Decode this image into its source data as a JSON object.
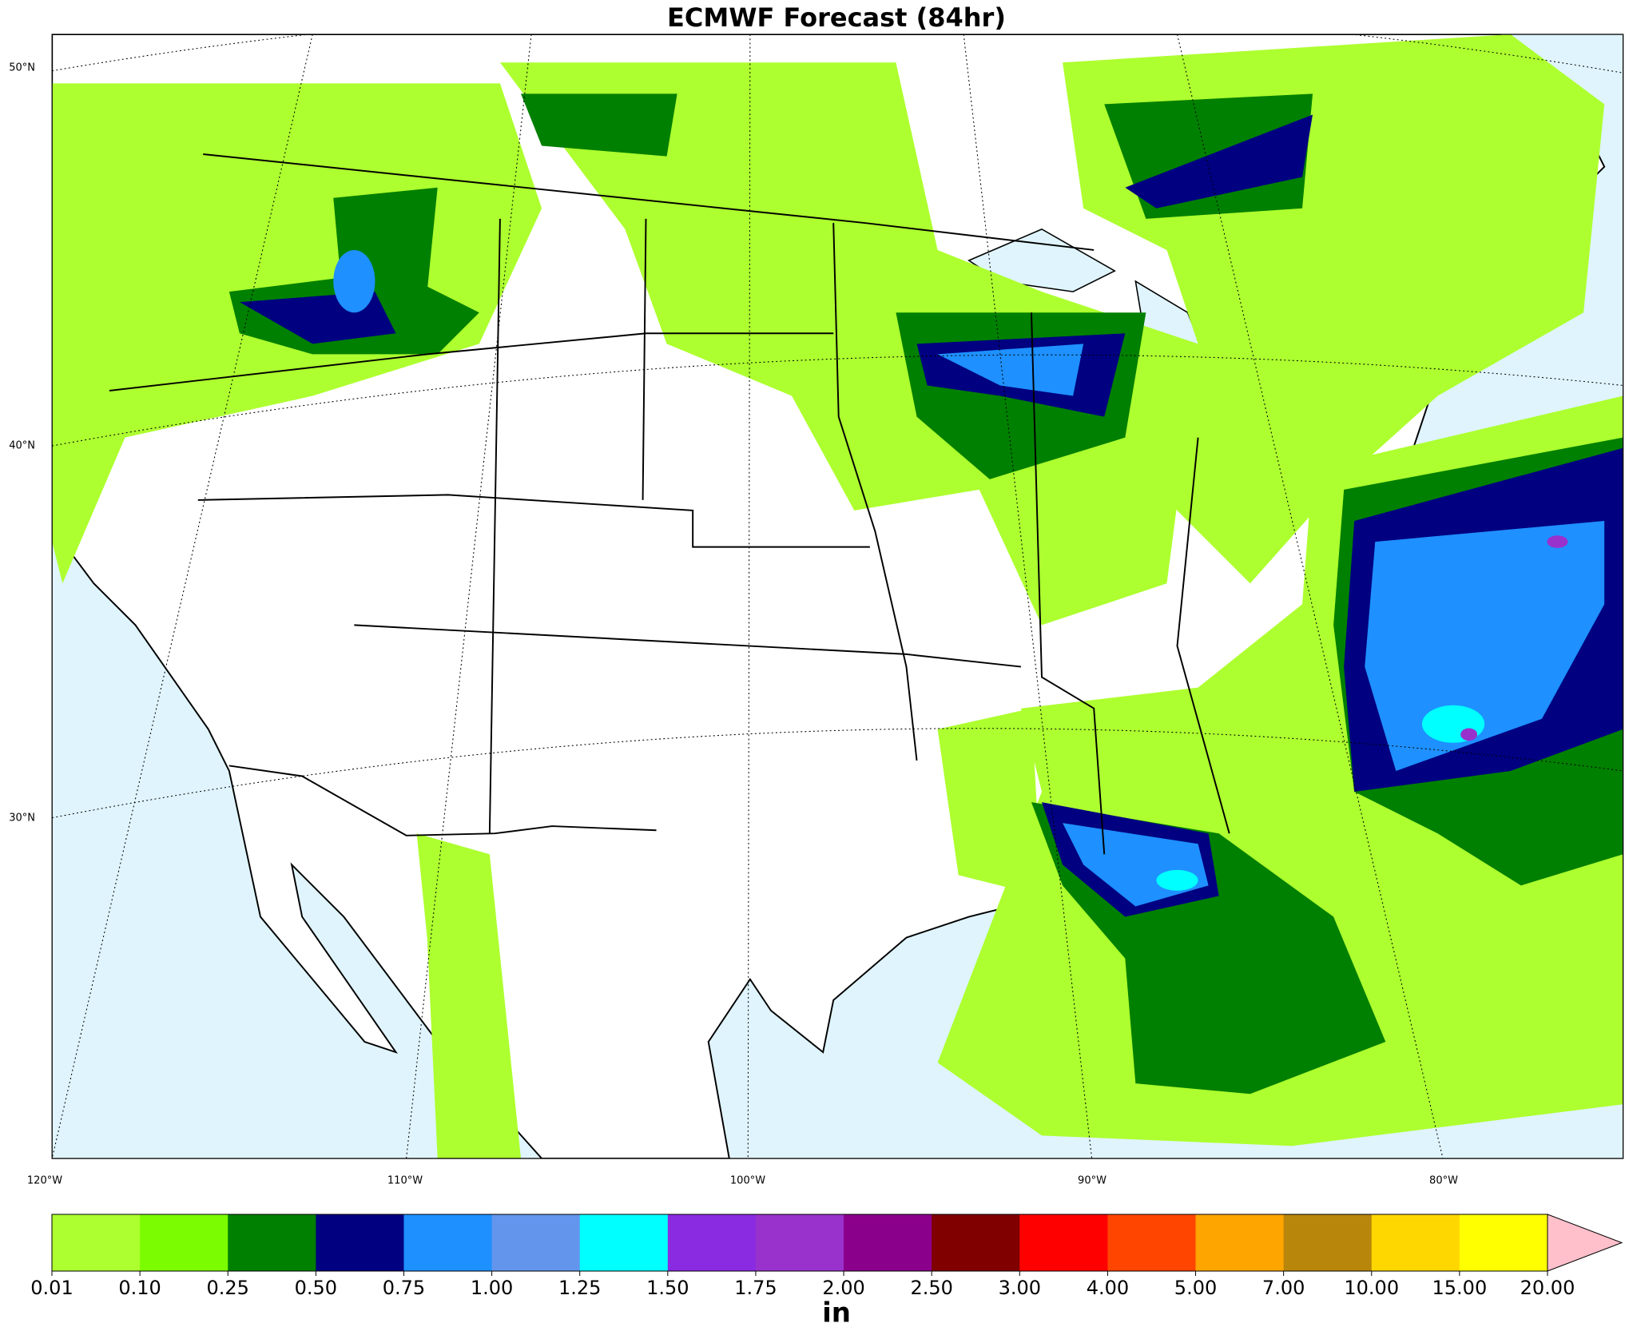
{
  "title": "ECMWF Forecast (84hr)",
  "map": {
    "lat_labels": [
      "50°N",
      "40°N",
      "30°N"
    ],
    "lon_labels": [
      "120°W",
      "110°W",
      "100°W",
      "90°W",
      "80°W"
    ]
  },
  "colorbar": {
    "ticks": [
      0.01,
      {
        "value": 0.1,
        "label": "0.10"
      },
      0.25,
      {
        "value": 0.5,
        "label": "0.50"
      },
      0.75,
      {
        "value": 1,
        "label": "1.00"
      },
      1.25,
      {
        "value": 1.5,
        "label": "1.50"
      },
      1.75,
      {
        "value": 2,
        "label": "2.00"
      },
      {
        "value": 2.5,
        "label": "2.50"
      },
      {
        "value": 3,
        "label": "3.00"
      },
      {
        "value": 4,
        "label": "4.00"
      },
      {
        "value": 5,
        "label": "5.00"
      },
      {
        "value": 7,
        "label": "7.00"
      },
      {
        "value": 10,
        "label": "10.00"
      },
      {
        "value": 15,
        "label": "15.00"
      },
      {
        "value": 20,
        "label": "20.00"
      }
    ],
    "colors": [
      "#adff2f",
      "#7cfc00",
      "#008000",
      "#000080",
      "#1e90ff",
      "#6495ed",
      "#00ffff",
      "#8a2be2",
      "#9932cc",
      "#8b008b",
      "#800000",
      "#ff0000",
      "#ff4500",
      "#ffa500",
      "#b8860b",
      "#ffd700",
      "#ffff00"
    ],
    "extend_color": "#ffc0cb",
    "label": "in"
  }
}
